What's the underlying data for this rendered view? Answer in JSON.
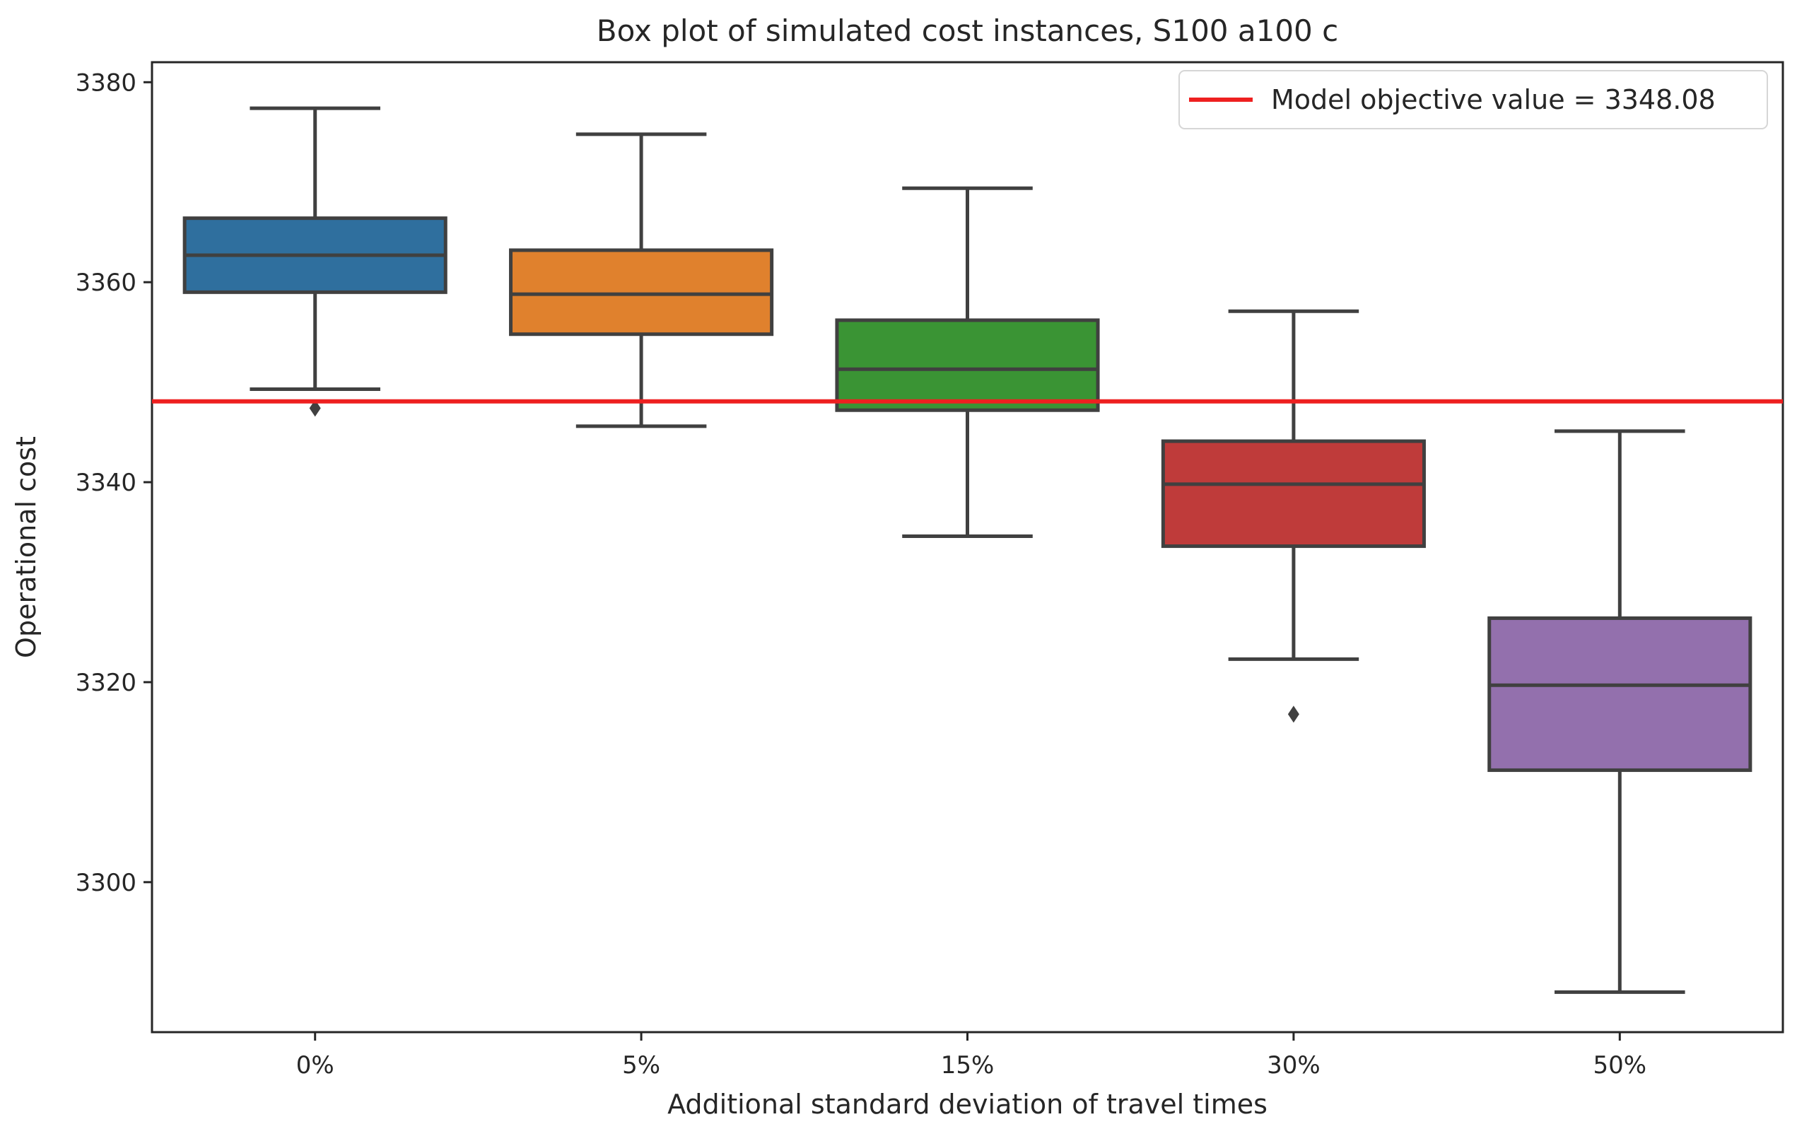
{
  "chart_data": {
    "type": "box",
    "title": "Box plot of simulated cost instances, S100 a100 c",
    "xlabel": "Additional standard deviation of travel times",
    "ylabel": "Operational cost",
    "categories": [
      "0%",
      "5%",
      "15%",
      "30%",
      "50%"
    ],
    "ylim": [
      3285,
      3382
    ],
    "yticks": [
      3300,
      3320,
      3340,
      3360,
      3380
    ],
    "boxes": [
      {
        "category": "0%",
        "whisker_low": 3349.3,
        "q1": 3359.0,
        "median": 3362.7,
        "q3": 3366.4,
        "whisker_high": 3377.4,
        "outliers": [
          3347.4
        ],
        "color": "#2f6f9e"
      },
      {
        "category": "5%",
        "whisker_low": 3345.6,
        "q1": 3354.8,
        "median": 3358.8,
        "q3": 3363.2,
        "whisker_high": 3374.8,
        "outliers": [],
        "color": "#e0812d"
      },
      {
        "category": "15%",
        "whisker_low": 3334.6,
        "q1": 3347.2,
        "median": 3351.3,
        "q3": 3356.2,
        "whisker_high": 3369.4,
        "outliers": [],
        "color": "#3a9434"
      },
      {
        "category": "30%",
        "whisker_low": 3322.3,
        "q1": 3333.6,
        "median": 3339.8,
        "q3": 3344.1,
        "whisker_high": 3357.1,
        "outliers": [
          3316.8
        ],
        "color": "#bf3b3a"
      },
      {
        "category": "50%",
        "whisker_low": 3289.0,
        "q1": 3311.2,
        "median": 3319.7,
        "q3": 3326.4,
        "whisker_high": 3345.1,
        "outliers": [],
        "color": "#9370ad"
      }
    ],
    "reference_line": {
      "value": 3348.08,
      "label": "Model objective value = 3348.08",
      "color": "#ee2020"
    },
    "legend_position": "top-right",
    "grid": false
  }
}
